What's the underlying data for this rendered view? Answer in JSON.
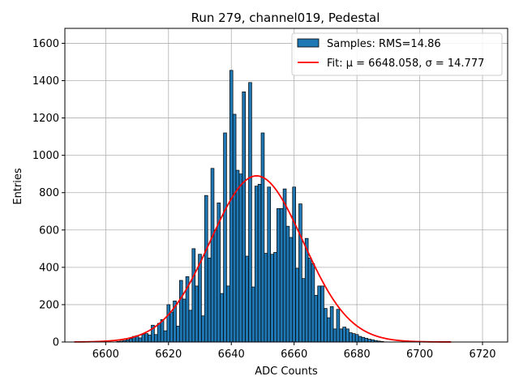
{
  "chart_data": {
    "type": "bar",
    "title": "Run 279, channel019, Pedestal",
    "xlabel": "ADC Counts",
    "ylabel": "Entries",
    "xlim": [
      6587,
      6728
    ],
    "ylim": [
      0,
      1680
    ],
    "xticks": [
      6600,
      6620,
      6640,
      6660,
      6680,
      6700,
      6720
    ],
    "yticks": [
      0,
      200,
      400,
      600,
      800,
      1000,
      1200,
      1400,
      1600
    ],
    "grid": true,
    "legend_position": "top-right",
    "colors": {
      "bars": "#1f77b4",
      "bar_edge": "#000000",
      "fit": "#ff0000",
      "grid": "#b0b0b0"
    },
    "histogram": {
      "name": "Samples: RMS=14.86",
      "bin_width": 1,
      "bins": [
        [
          6604,
          3
        ],
        [
          6605,
          5
        ],
        [
          6606,
          8
        ],
        [
          6607,
          12
        ],
        [
          6608,
          18
        ],
        [
          6609,
          30
        ],
        [
          6610,
          34
        ],
        [
          6611,
          22
        ],
        [
          6612,
          40
        ],
        [
          6613,
          45
        ],
        [
          6614,
          38
        ],
        [
          6615,
          90
        ],
        [
          6616,
          40
        ],
        [
          6617,
          100
        ],
        [
          6618,
          120
        ],
        [
          6619,
          60
        ],
        [
          6620,
          200
        ],
        [
          6621,
          160
        ],
        [
          6622,
          220
        ],
        [
          6623,
          85
        ],
        [
          6624,
          330
        ],
        [
          6625,
          230
        ],
        [
          6626,
          350
        ],
        [
          6627,
          170
        ],
        [
          6628,
          500
        ],
        [
          6629,
          300
        ],
        [
          6630,
          470
        ],
        [
          6631,
          140
        ],
        [
          6632,
          785
        ],
        [
          6633,
          450
        ],
        [
          6634,
          930
        ],
        [
          6635,
          600
        ],
        [
          6636,
          745
        ],
        [
          6637,
          260
        ],
        [
          6638,
          1120
        ],
        [
          6639,
          300
        ],
        [
          6640,
          1455
        ],
        [
          6641,
          1220
        ],
        [
          6642,
          920
        ],
        [
          6643,
          900
        ],
        [
          6644,
          1340
        ],
        [
          6645,
          460
        ],
        [
          6646,
          1390
        ],
        [
          6647,
          295
        ],
        [
          6648,
          835
        ],
        [
          6649,
          845
        ],
        [
          6650,
          1120
        ],
        [
          6651,
          475
        ],
        [
          6652,
          830
        ],
        [
          6653,
          470
        ],
        [
          6654,
          480
        ],
        [
          6655,
          715
        ],
        [
          6656,
          715
        ],
        [
          6657,
          820
        ],
        [
          6658,
          620
        ],
        [
          6659,
          560
        ],
        [
          6660,
          830
        ],
        [
          6661,
          395
        ],
        [
          6662,
          740
        ],
        [
          6663,
          340
        ],
        [
          6664,
          555
        ],
        [
          6665,
          450
        ],
        [
          6666,
          420
        ],
        [
          6667,
          250
        ],
        [
          6668,
          300
        ],
        [
          6669,
          300
        ],
        [
          6670,
          180
        ],
        [
          6671,
          130
        ],
        [
          6672,
          190
        ],
        [
          6673,
          70
        ],
        [
          6674,
          175
        ],
        [
          6675,
          70
        ],
        [
          6676,
          80
        ],
        [
          6677,
          70
        ],
        [
          6678,
          50
        ],
        [
          6679,
          45
        ],
        [
          6680,
          40
        ],
        [
          6681,
          30
        ],
        [
          6682,
          25
        ],
        [
          6683,
          20
        ],
        [
          6684,
          15
        ],
        [
          6685,
          12
        ],
        [
          6686,
          8
        ],
        [
          6687,
          5
        ],
        [
          6688,
          3
        ]
      ]
    },
    "fit": {
      "name": "Fit: μ = 6648.058, σ = 14.777",
      "type": "gaussian",
      "mu": 6648.058,
      "sigma": 14.777,
      "amplitude": 890,
      "x_range": [
        6590,
        6710
      ]
    }
  }
}
